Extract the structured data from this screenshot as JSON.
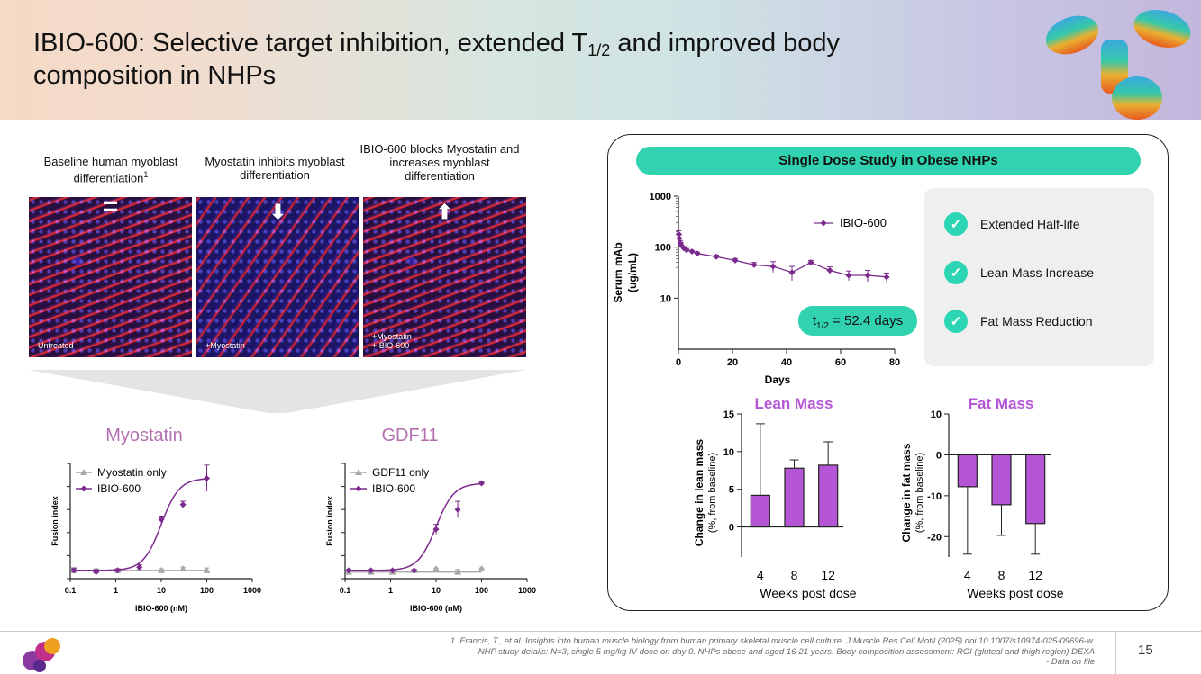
{
  "slide": {
    "title_part1": "IBIO-600: Selective target inhibition, extended T",
    "title_sub": "1/2",
    "title_part2": " and improved body composition in NHPs",
    "page_number": "15"
  },
  "cell_panels": [
    {
      "caption": "Baseline human myoblast differentiation",
      "caption_sup": "1",
      "label": "Untreated",
      "icon": "equals-icon",
      "glyph": "="
    },
    {
      "caption": "Myostatin inhibits myoblast differentiation",
      "caption_sup": "",
      "label": "+Myostatin",
      "icon": "arrow-down-icon",
      "glyph": "⬇"
    },
    {
      "caption": "IBIO-600 blocks Myostatin and increases myoblast differentiation",
      "caption_sup": "",
      "label_line1": "+Myostatin",
      "label_line2": "+IBIO-600",
      "icon": "arrow-up-icon",
      "glyph": "⬆"
    }
  ],
  "study": {
    "banner": "Single Dose Study in Obese NHPs",
    "halflife_prefix": "t",
    "halflife_sub": "1/2",
    "halflife_value": " = 52.4 days",
    "benefits": [
      "Extended Half-life",
      "Lean Mass Increase",
      "Fat Mass Reduction"
    ]
  },
  "footnote": {
    "line1": "1.    Francis, T., et al. Insights into human muscle biology from human primary skeletal muscle cell culture. J Muscle Res Cell Motil (2025) doi:10.1007/s10974-025-09696-w.",
    "line2": "NHP study details: N=3, single 5 mg/kg IV dose on day 0. NHPs obese and aged 16-21 years. Body composition assessment: ROI (gluteal and thigh region) DEXA",
    "line3": "- Data on file"
  },
  "colors": {
    "purple": "#7b2a8e",
    "gray": "#a8a8a8",
    "teal": "#30d2b0",
    "bar": "#b455d6",
    "title_purple": "#b270b0"
  },
  "chart_data": [
    {
      "type": "scatter",
      "title": "Myostatin",
      "xlabel": "IBIO-600 (nM)",
      "ylabel": "Fusion index",
      "xscale": "log",
      "xlim": [
        0.1,
        1000
      ],
      "xticks": [
        "0.1",
        "1",
        "10",
        "100",
        "1000"
      ],
      "series": [
        {
          "name": "Myostatin only",
          "color": "#a8a8a8",
          "marker": "triangle",
          "x": [
            0.12,
            0.37,
            1.1,
            3.3,
            10,
            30,
            100
          ],
          "y": [
            0.05,
            0.05,
            0.05,
            0.06,
            0.05,
            0.06,
            0.05
          ],
          "err": [
            0.01,
            0.01,
            0.01,
            0.01,
            0.01,
            0.01,
            0.015
          ]
        },
        {
          "name": "IBIO-600",
          "color": "#7b2a8e",
          "marker": "diamond",
          "x": [
            0.12,
            0.37,
            1.1,
            3.3,
            10,
            30,
            100
          ],
          "y": [
            0.05,
            0.04,
            0.05,
            0.07,
            0.36,
            0.45,
            0.61
          ],
          "err": [
            0.015,
            0.015,
            0.01,
            0.015,
            0.02,
            0.02,
            0.08
          ]
        }
      ]
    },
    {
      "type": "scatter",
      "title": "GDF11",
      "xlabel": "IBIO-600 (nM)",
      "ylabel": "Fusion index",
      "xscale": "log",
      "xlim": [
        0.1,
        1000
      ],
      "xticks": [
        "0.1",
        "1",
        "10",
        "100",
        "1000"
      ],
      "series": [
        {
          "name": "GDF11 only",
          "color": "#a8a8a8",
          "marker": "triangle",
          "x": [
            0.12,
            0.37,
            1.1,
            3.3,
            10,
            30,
            100
          ],
          "y": [
            0.04,
            0.04,
            0.04,
            0.05,
            0.06,
            0.04,
            0.06
          ],
          "err": [
            0.005,
            0.005,
            0.005,
            0.005,
            0.005,
            0.015,
            0.005
          ]
        },
        {
          "name": "IBIO-600",
          "color": "#7b2a8e",
          "marker": "diamond",
          "x": [
            0.12,
            0.37,
            1.1,
            3.3,
            10,
            30,
            100
          ],
          "y": [
            0.05,
            0.05,
            0.05,
            0.05,
            0.3,
            0.42,
            0.58
          ],
          "err": [
            0.005,
            0.005,
            0.005,
            0.005,
            0.03,
            0.05,
            0.01
          ]
        }
      ]
    },
    {
      "type": "line",
      "title": "",
      "xlabel": "Days",
      "ylabel": "Serum mAb (ug/mL)",
      "yscale": "log",
      "ylim": [
        1,
        1000
      ],
      "xlim": [
        0,
        80
      ],
      "xticks": [
        0,
        20,
        40,
        60,
        80
      ],
      "yticks": [
        "10",
        "100",
        "1000"
      ],
      "series": [
        {
          "name": "IBIO-600",
          "color": "#7b2a8e",
          "x": [
            0.1,
            0.3,
            0.7,
            1,
            2,
            3,
            5,
            7,
            14,
            21,
            28,
            35,
            42,
            49,
            56,
            63,
            70,
            77
          ],
          "y": [
            180,
            150,
            120,
            110,
            95,
            88,
            82,
            75,
            65,
            55,
            45,
            42,
            32,
            50,
            35,
            28,
            28,
            26
          ],
          "err": [
            30,
            25,
            15,
            12,
            8,
            6,
            5,
            5,
            5,
            5,
            5,
            10,
            10,
            5,
            6,
            6,
            7,
            5
          ]
        }
      ]
    },
    {
      "type": "bar",
      "title": "Lean Mass",
      "xlabel": "Weeks post dose",
      "ylabel": "Change in lean mass",
      "ylabel_sub": "(%, from baseline)",
      "categories": [
        "4",
        "8",
        "12"
      ],
      "values": [
        4.2,
        7.8,
        8.2
      ],
      "err": [
        9.5,
        1.1,
        3.1
      ],
      "ylim": [
        -4,
        15
      ],
      "yticks": [
        0,
        5,
        10,
        15
      ]
    },
    {
      "type": "bar",
      "title": "Fat Mass",
      "xlabel": "Weeks post dose",
      "ylabel": "Change in fat mass",
      "ylabel_sub": "(%, from baseline)",
      "categories": [
        "4",
        "8",
        "12"
      ],
      "values": [
        -7.8,
        -12.2,
        -16.8
      ],
      "err": [
        16.5,
        7.5,
        7.5
      ],
      "ylim": [
        -25,
        10
      ],
      "yticks": [
        10,
        0,
        -10,
        -20
      ]
    }
  ]
}
